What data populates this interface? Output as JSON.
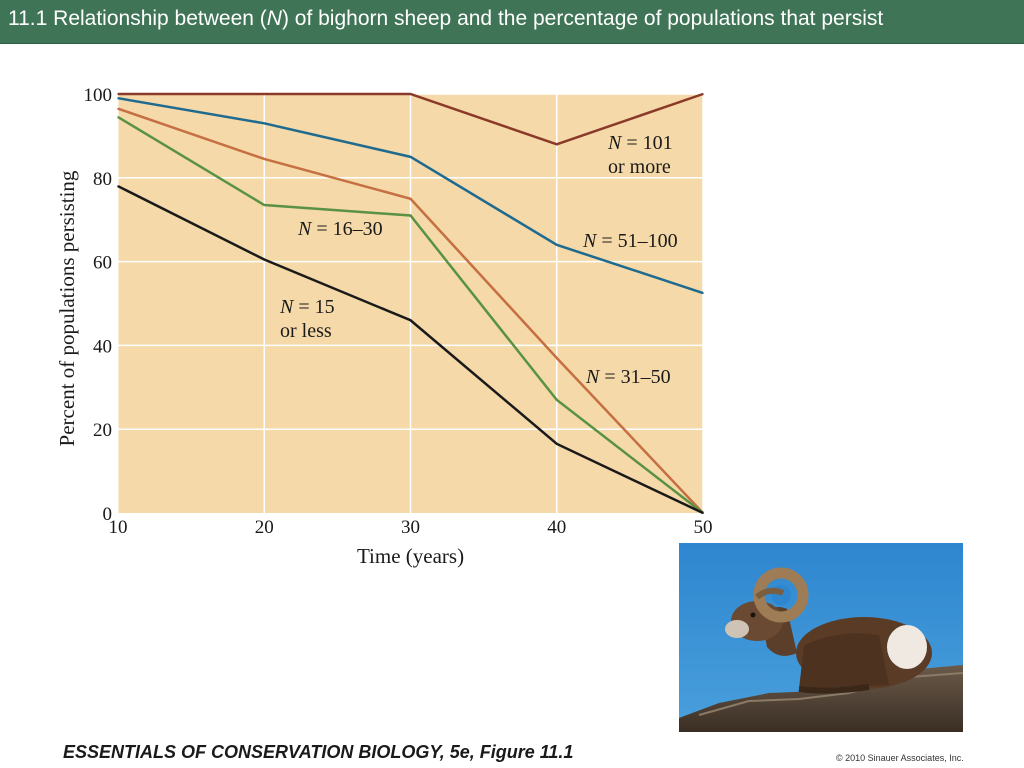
{
  "slide": {
    "title_prefix": "11.1  Relationship between (",
    "title_var": "N",
    "title_suffix": ") of bighorn sheep and the percentage of populations that persist",
    "footer_book": "ESSENTIALS OF CONSERVATION BIOLOGY,",
    "footer_rest": " 5e, Figure 11.1",
    "copyright": "© 2010 Sinauer Associates, Inc."
  },
  "colors": {
    "title_bar": "#3f7556",
    "plot_background": "#f5d9a8",
    "grid": "#ffffff"
  },
  "chart_data": {
    "type": "line",
    "xlabel": "Time (years)",
    "ylabel": "Percent of populations persisting",
    "xlim": [
      10,
      50
    ],
    "ylim": [
      0,
      100
    ],
    "xticks": [
      10,
      20,
      30,
      40,
      50
    ],
    "yticks": [
      0,
      20,
      40,
      60,
      80,
      100
    ],
    "grid": true,
    "series": [
      {
        "name": "N = 101 or more",
        "label_var": "N",
        "label_line1": " = 101",
        "label_line2": "or more",
        "color": "#8b3a2a",
        "x": [
          10,
          20,
          30,
          40,
          50
        ],
        "y": [
          100,
          100,
          100,
          88,
          100
        ]
      },
      {
        "name": "N = 51–100",
        "label_var": "N",
        "label_line1": " = 51–100",
        "color": "#1f6b8f",
        "x": [
          10,
          20,
          30,
          40,
          50
        ],
        "y": [
          99,
          93,
          85,
          64,
          52.5
        ]
      },
      {
        "name": "N = 31–50",
        "label_var": "N",
        "label_line1": " = 31–50",
        "color": "#c56f43",
        "x": [
          10,
          20,
          30,
          40,
          50
        ],
        "y": [
          96.5,
          84.5,
          75,
          37,
          0
        ]
      },
      {
        "name": "N = 16–30",
        "label_var": "N",
        "label_line1": " = 16–30",
        "color": "#5a9243",
        "x": [
          10,
          20,
          30,
          40,
          50
        ],
        "y": [
          94.5,
          73.5,
          71,
          27,
          0
        ]
      },
      {
        "name": "N = 15 or less",
        "label_var": "N",
        "label_line1": " = 15",
        "label_line2": "or less",
        "color": "#1a1a1a",
        "x": [
          10,
          20,
          30,
          40,
          50
        ],
        "y": [
          78,
          60.5,
          46,
          16.5,
          0
        ]
      }
    ]
  }
}
